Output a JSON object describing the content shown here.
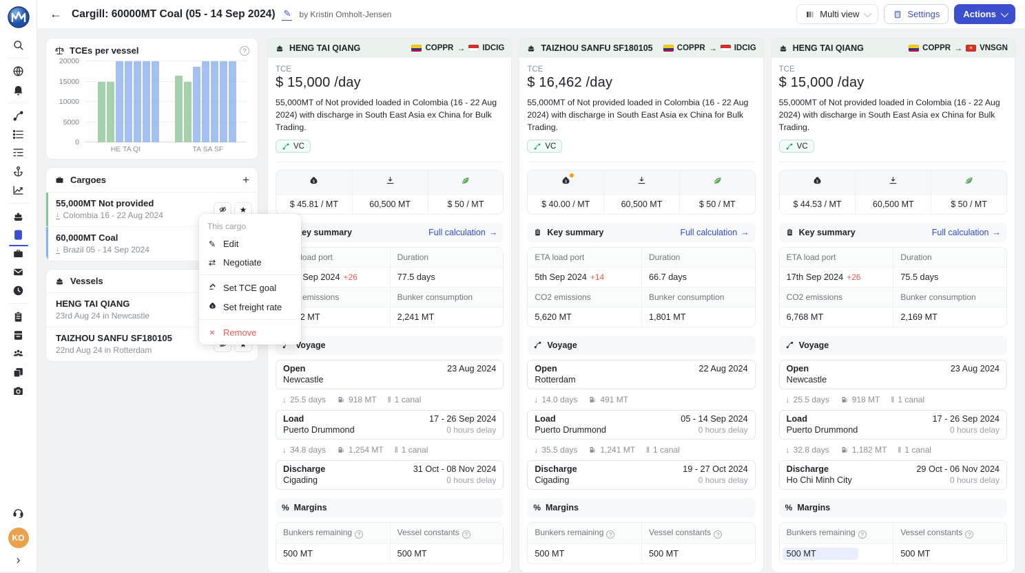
{
  "theme": {
    "accent": "#3c50cf",
    "link": "#2d4bdb",
    "red": "#ee5a52",
    "header_green": "#e9f2ec",
    "avatar_orange": "#e9a24b",
    "highlight_blue": "#e8eefb",
    "badge_teal": "#17a07a",
    "bar_green": "#a5d2ac",
    "bar_blue": "#a3c0f1"
  },
  "icons": {
    "back": "←",
    "plus": "+",
    "arrow_right": "→",
    "arrow_down": "↓",
    "canal": "‖",
    "star": "★",
    "help": "?",
    "percent": "%",
    "close": "×",
    "edit": "✎",
    "swap": "⇄",
    "expand": "›"
  },
  "header": {
    "title": "Cargill: 60000MT Coal (05 - 14 Sep 2024)",
    "byline": "by Kristin Omholt-Jensen",
    "multi_view_label": "Multi view",
    "settings_label": "Settings",
    "actions_label": "Actions"
  },
  "sidebar": {
    "avatar": "KO"
  },
  "left_panel": {
    "tce_chart_title": "TCEs per vessel",
    "cargoes": {
      "title": "Cargoes",
      "items": [
        {
          "name": "55,000MT Not provided",
          "sub": "Colombia 16 - 22 Aug 2024"
        },
        {
          "name": "60,000MT Coal",
          "sub": "Brazil 05 - 14 Sep 2024"
        }
      ]
    },
    "vessels": {
      "title": "Vessels",
      "items": [
        {
          "name": "HENG TAI QIANG",
          "sub": "23rd Aug 24 in Newcastle"
        },
        {
          "name": "TAIZHOU SANFU SF180105",
          "sub": "22nd Aug 24 in Rotterdam"
        }
      ]
    }
  },
  "context_menu": {
    "title": "This cargo",
    "edit": "Edit",
    "negotiate": "Negotiate",
    "set_tce_goal": "Set TCE goal",
    "set_freight_rate": "Set freight rate",
    "remove": "Remove"
  },
  "labels": {
    "tce": "TCE",
    "key_summary": "Key summary",
    "full_calculation": "Full calculation",
    "voyage": "Voyage",
    "margins": "Margins",
    "eta_load_port": "ETA load port",
    "duration": "Duration",
    "co2_emissions": "CO2 emissions",
    "bunker_consumption": "Bunker consumption",
    "bunkers_remaining": "Bunkers remaining",
    "vessel_constants": "Vessel constants"
  },
  "chart_data": {
    "type": "bar",
    "title": "TCEs per vessel",
    "xlabel": "",
    "ylabel": "",
    "ylim": [
      0,
      20000
    ],
    "yticks": [
      0,
      5000,
      10000,
      15000,
      20000
    ],
    "grid": true,
    "categories": [
      "HE TA QI",
      "TA SA SF"
    ],
    "groups": [
      {
        "label": "HE TA QI",
        "bars": [
          {
            "value": 15000,
            "color": "green"
          },
          {
            "value": 15000,
            "color": "green"
          },
          {
            "value": 20000,
            "color": "blue"
          },
          {
            "value": 20000,
            "color": "blue"
          },
          {
            "value": 20000,
            "color": "blue"
          },
          {
            "value": 20000,
            "color": "blue"
          },
          {
            "value": 20000,
            "color": "blue"
          }
        ]
      },
      {
        "label": "TA SA SF",
        "bars": [
          {
            "value": 16400,
            "color": "green"
          },
          {
            "value": 15000,
            "color": "green"
          },
          {
            "value": 18600,
            "color": "blue"
          },
          {
            "value": 20000,
            "color": "blue"
          },
          {
            "value": 20000,
            "color": "blue"
          },
          {
            "value": 20000,
            "color": "blue"
          },
          {
            "value": 20000,
            "color": "blue"
          }
        ]
      }
    ]
  },
  "cards": [
    {
      "vessel": "HENG TAI QIANG",
      "route": {
        "from_code": "COPPR",
        "from_flag": "co",
        "to_code": "IDCIG",
        "to_flag": "id"
      },
      "tce_value": "$ 15,000 /day",
      "description": "55,000MT of Not provided loaded in Colombia (16 - 22 Aug 2024) with discharge in South East Asia ex China for Bulk Trading.",
      "badge": "VC",
      "stats": {
        "freight": "$ 45.81 / MT",
        "quantity": "60,500 MT",
        "co2_price": "$ 50 / MT",
        "freight_modified": false
      },
      "summary": {
        "eta": "17th Sep 2024",
        "eta_delta": "+26",
        "duration": "77.5 days",
        "co2": "6,902 MT",
        "bunker": "2,241 MT"
      },
      "voyage": [
        {
          "kind": "stop",
          "type": "Open",
          "port": "Newcastle",
          "date": "23 Aug 2024",
          "delay": ""
        },
        {
          "kind": "leg",
          "days": "25.5 days",
          "fuel": "918 MT",
          "canal": "1 canal"
        },
        {
          "kind": "stop",
          "type": "Load",
          "port": "Puerto Drummond",
          "date": "17 - 26 Sep 2024",
          "delay": "0 hours delay"
        },
        {
          "kind": "leg",
          "days": "34.8 days",
          "fuel": "1,254 MT",
          "canal": "1 canal"
        },
        {
          "kind": "stop",
          "type": "Discharge",
          "port": "Cigading",
          "date": "31 Oct - 08 Nov 2024",
          "delay": "0 hours delay"
        }
      ],
      "margins": {
        "bunkers_remaining": "500 MT",
        "vessel_constants": "500 MT",
        "bunkers_highlighted": false
      }
    },
    {
      "vessel": "TAIZHOU SANFU SF180105",
      "route": {
        "from_code": "COPPR",
        "from_flag": "co",
        "to_code": "IDCIG",
        "to_flag": "id"
      },
      "tce_value": "$ 16,462 /day",
      "description": "55,000MT of Not provided loaded in Colombia (16 - 22 Aug 2024) with discharge in South East Asia ex China for Bulk Trading.",
      "badge": "VC",
      "stats": {
        "freight": "$ 40.00 / MT",
        "quantity": "60,500 MT",
        "co2_price": "$ 50 / MT",
        "freight_modified": true
      },
      "summary": {
        "eta": "5th Sep 2024",
        "eta_delta": "+14",
        "duration": "66.7 days",
        "co2": "5,620 MT",
        "bunker": "1,801 MT"
      },
      "voyage": [
        {
          "kind": "stop",
          "type": "Open",
          "port": "Rotterdam",
          "date": "22 Aug 2024",
          "delay": ""
        },
        {
          "kind": "leg",
          "days": "14.0 days",
          "fuel": "491 MT",
          "canal": ""
        },
        {
          "kind": "stop",
          "type": "Load",
          "port": "Puerto Drummond",
          "date": "05 - 14 Sep 2024",
          "delay": "0 hours delay"
        },
        {
          "kind": "leg",
          "days": "35.5 days",
          "fuel": "1,241 MT",
          "canal": "1 canal"
        },
        {
          "kind": "stop",
          "type": "Discharge",
          "port": "Cigading",
          "date": "19 - 27 Oct 2024",
          "delay": "0 hours delay"
        }
      ],
      "margins": {
        "bunkers_remaining": "500 MT",
        "vessel_constants": "500 MT",
        "bunkers_highlighted": false
      }
    },
    {
      "vessel": "HENG TAI QIANG",
      "route": {
        "from_code": "COPPR",
        "from_flag": "co",
        "to_code": "VNSGN",
        "to_flag": "vn"
      },
      "tce_value": "$ 15,000 /day",
      "description": "55,000MT of Not provided loaded in Colombia (16 - 22 Aug 2024) with discharge in South East Asia ex China for Bulk Trading.",
      "badge": "VC",
      "stats": {
        "freight": "$ 44.53 / MT",
        "quantity": "60,500 MT",
        "co2_price": "$ 50 / MT",
        "freight_modified": false
      },
      "summary": {
        "eta": "17th Sep 2024",
        "eta_delta": "+26",
        "duration": "75.5 days",
        "co2": "6,768 MT",
        "bunker": "2,169 MT"
      },
      "voyage": [
        {
          "kind": "stop",
          "type": "Open",
          "port": "Newcastle",
          "date": "23 Aug 2024",
          "delay": ""
        },
        {
          "kind": "leg",
          "days": "25.5 days",
          "fuel": "918 MT",
          "canal": "1 canal"
        },
        {
          "kind": "stop",
          "type": "Load",
          "port": "Puerto Drummond",
          "date": "17 - 26 Sep 2024",
          "delay": "0 hours delay"
        },
        {
          "kind": "leg",
          "days": "32.8 days",
          "fuel": "1,182 MT",
          "canal": "1 canal"
        },
        {
          "kind": "stop",
          "type": "Discharge",
          "port": "Ho Chi Minh City",
          "date": "29 Oct - 06 Nov 2024",
          "delay": "0 hours delay"
        }
      ],
      "margins": {
        "bunkers_remaining": "500 MT",
        "vessel_constants": "500 MT",
        "bunkers_highlighted": true
      }
    }
  ]
}
